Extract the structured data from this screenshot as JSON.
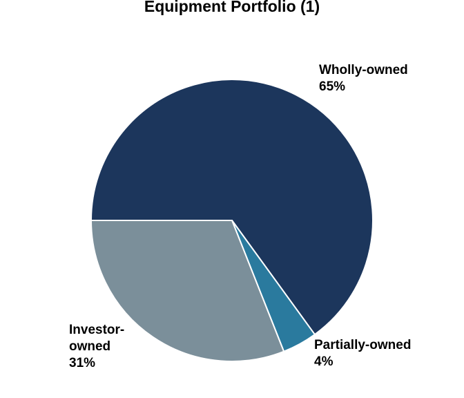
{
  "chart_data": {
    "type": "pie",
    "title": "Equipment Portfolio (1)",
    "slices": [
      {
        "name": "Wholly-owned",
        "label_lines": [
          "Wholly-owned"
        ],
        "value": 65,
        "pct_text": "65%",
        "color": "#1c365c"
      },
      {
        "name": "Partially-owned",
        "label_lines": [
          "Partially-owned"
        ],
        "value": 4,
        "pct_text": "4%",
        "color": "#2a7a9e"
      },
      {
        "name": "Investor-owned",
        "label_lines": [
          "Investor-",
          "owned"
        ],
        "value": 31,
        "pct_text": "31%",
        "color": "#7b8f9a"
      }
    ]
  }
}
